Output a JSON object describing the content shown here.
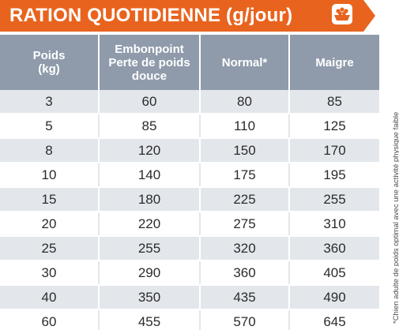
{
  "header": {
    "title": "RATION QUOTIDIENNE (g/jour)",
    "icon": "food-bowl-icon",
    "accent_color": "#e8641e"
  },
  "table": {
    "header_color": "#8f9bab",
    "stripe_color": "#e3e7ec",
    "columns": [
      {
        "line1": "Poids",
        "line2": "(kg)",
        "line3": ""
      },
      {
        "line1": "Embonpoint",
        "line2": "Perte de poids",
        "line3": "douce"
      },
      {
        "line1": "Normal*",
        "line2": "",
        "line3": ""
      },
      {
        "line1": "Maigre",
        "line2": "",
        "line3": ""
      }
    ],
    "rows": [
      [
        "3",
        "60",
        "80",
        "85"
      ],
      [
        "5",
        "85",
        "110",
        "125"
      ],
      [
        "8",
        "120",
        "150",
        "170"
      ],
      [
        "10",
        "140",
        "175",
        "195"
      ],
      [
        "15",
        "180",
        "225",
        "255"
      ],
      [
        "20",
        "220",
        "275",
        "310"
      ],
      [
        "25",
        "255",
        "320",
        "360"
      ],
      [
        "30",
        "290",
        "360",
        "405"
      ],
      [
        "40",
        "350",
        "435",
        "490"
      ],
      [
        "60",
        "455",
        "570",
        "645"
      ]
    ]
  },
  "footnote": "*Chien adulte de poids optimal avec une activité physique faible"
}
